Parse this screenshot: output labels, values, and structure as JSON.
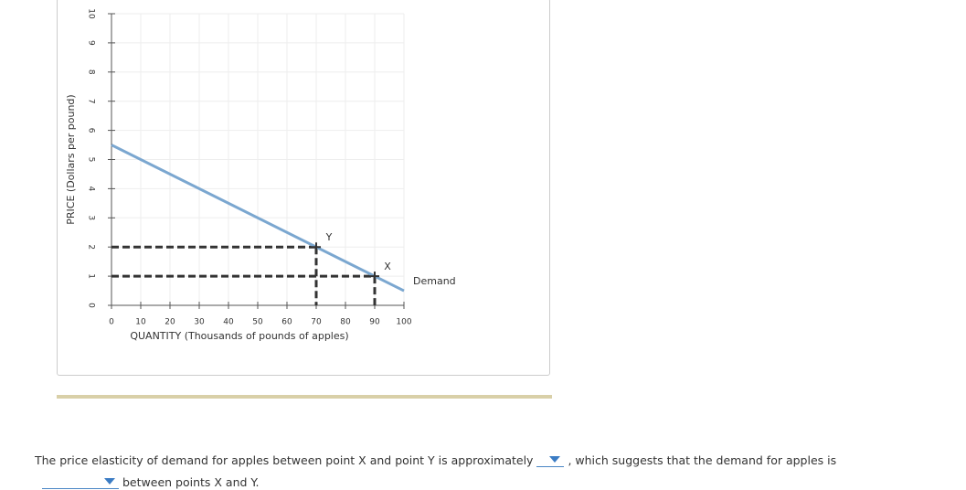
{
  "chart_data": {
    "type": "line",
    "xlabel": "QUANTITY (Thousands of pounds of apples)",
    "ylabel": "PRICE (Dollars per pound)",
    "series": [
      {
        "name": "Demand",
        "color": "#7ba7d0",
        "x": [
          0,
          100
        ],
        "values": [
          5.5,
          0.5
        ]
      }
    ],
    "points": [
      {
        "label": "Y",
        "x": 70,
        "y": 2
      },
      {
        "label": "X",
        "x": 90,
        "y": 1
      }
    ],
    "xlim": [
      0,
      100
    ],
    "xticks": [
      0,
      10,
      20,
      30,
      40,
      50,
      60,
      70,
      80,
      90,
      100
    ],
    "ylim": [
      0,
      10
    ],
    "yticks": [
      0,
      1,
      2,
      3,
      4,
      5,
      6,
      7,
      8,
      9,
      10
    ],
    "grid": true
  },
  "question": {
    "before": "The price elasticity of demand for apples between point X and point Y is approximately",
    "middle": ", which suggests that the demand for apples is",
    "after": "between points X and Y."
  }
}
